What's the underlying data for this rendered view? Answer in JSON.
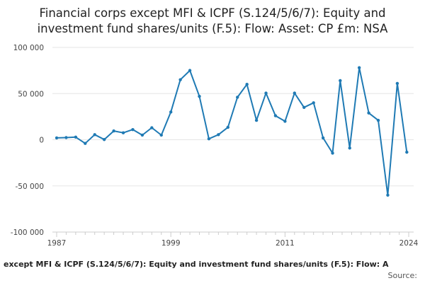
{
  "chart_data": {
    "type": "line",
    "title_lines": [
      "Financial corps except MFI & ICPF (S.124/5/6/7): Equity and",
      "investment fund shares/units (F.5): Flow: Asset: CP £m: NSA"
    ],
    "xlabel": "",
    "ylabel": "",
    "ylim": [
      -100000,
      100000
    ],
    "xlim": [
      1987,
      2024
    ],
    "y_ticks": [
      {
        "value": 100000,
        "label": "100 000"
      },
      {
        "value": 50000,
        "label": "50 000"
      },
      {
        "value": 0,
        "label": "0"
      },
      {
        "value": -50000,
        "label": "-50 000"
      },
      {
        "value": -100000,
        "label": "-100 000"
      }
    ],
    "x_ticks": [
      {
        "value": 1987,
        "label": "1987"
      },
      {
        "value": 1999,
        "label": "1999"
      },
      {
        "value": 2011,
        "label": "2011"
      },
      {
        "value": 2024,
        "label": "2024"
      }
    ],
    "series": [
      {
        "name": "Financial corps except MFI & ICPF (S.124/5/6/7): Equity and investment fund shares/units (F.5): Flow: Asset: CP £m: NSA",
        "color": "#1f7ab4",
        "points": [
          [
            1987,
            2000
          ],
          [
            1988,
            2300
          ],
          [
            1989,
            2800
          ],
          [
            1990,
            -4000
          ],
          [
            1991,
            5500
          ],
          [
            1992,
            200
          ],
          [
            1993,
            9500
          ],
          [
            1994,
            7500
          ],
          [
            1995,
            11000
          ],
          [
            1996,
            5000
          ],
          [
            1997,
            13000
          ],
          [
            1998,
            5000
          ],
          [
            1999,
            30000
          ],
          [
            2000,
            65000
          ],
          [
            2001,
            75000
          ],
          [
            2002,
            47000
          ],
          [
            2003,
            1000
          ],
          [
            2004,
            5500
          ],
          [
            2005,
            13500
          ],
          [
            2006,
            46000
          ],
          [
            2007,
            60000
          ],
          [
            2008,
            21000
          ],
          [
            2009,
            50500
          ],
          [
            2010,
            26000
          ],
          [
            2011,
            20000
          ],
          [
            2012,
            50500
          ],
          [
            2013,
            35000
          ],
          [
            2014,
            40000
          ],
          [
            2015,
            2000
          ],
          [
            2016,
            -14500
          ],
          [
            2016.8,
            64000
          ],
          [
            2017.8,
            -9000
          ],
          [
            2018.8,
            78000
          ],
          [
            2019.8,
            29000
          ],
          [
            2020.8,
            21000
          ],
          [
            2021.8,
            -60000
          ],
          [
            2022.8,
            61000
          ],
          [
            2023.8,
            -13500
          ]
        ]
      }
    ],
    "legend_text": "except MFI & ICPF (S.124/5/6/7): Equity and investment fund shares/units (F.5): Flow: A",
    "source_label": "Source:"
  }
}
